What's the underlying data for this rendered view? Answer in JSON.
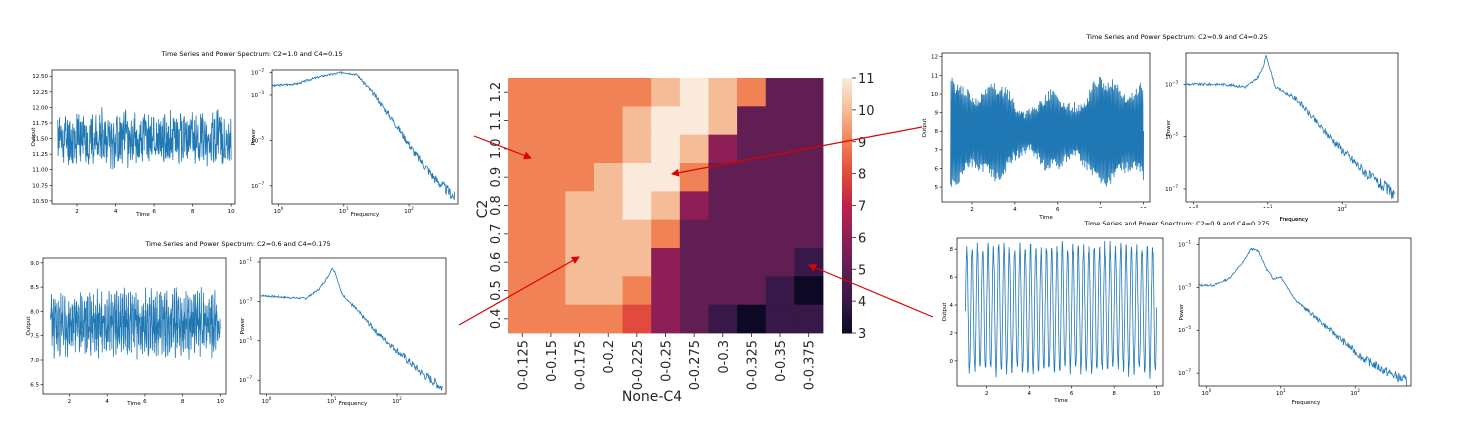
{
  "colors": {
    "line": "#1f77b4",
    "arrow": "#e00000"
  },
  "panels": [
    {
      "title": "Time Series and Power Spectrum: C2=1.0 and C4=0.15",
      "ts": {
        "xlabel": "Time",
        "ylabel": "Output",
        "xlim": [
          0.7,
          10.2
        ],
        "ylim": [
          10.45,
          12.6
        ],
        "xticks": [
          2,
          4,
          6,
          8,
          10
        ],
        "yticks": [
          10.5,
          10.75,
          11.0,
          11.25,
          11.5,
          11.75,
          12.0,
          12.25,
          12.5
        ],
        "ytick_labels": [
          "10.50",
          "10.75",
          "11.00",
          "11.25",
          "11.50",
          "11.75",
          "12.00",
          "12.25",
          "12.50"
        ],
        "mean": 11.5,
        "amp": 0.32,
        "freq": 0,
        "seed": 11
      },
      "ps": {
        "xlabel": "Frequency",
        "ylabel": "Power",
        "xlog": [
          -0.1,
          2.75
        ],
        "ylog": [
          -7.8,
          -1.9
        ],
        "xticks": [
          0,
          1,
          2
        ],
        "yticks": [
          -7,
          -5,
          -3,
          -2
        ],
        "curve": [
          [
            -0.1,
            -2.6
          ],
          [
            0.3,
            -2.5
          ],
          [
            0.5,
            -2.3
          ],
          [
            0.7,
            -2.15
          ],
          [
            0.9,
            -2.05
          ],
          [
            1.0,
            -2.0
          ],
          [
            1.2,
            -2.1
          ],
          [
            1.5,
            -3.1
          ],
          [
            1.8,
            -4.3
          ],
          [
            2.1,
            -5.6
          ],
          [
            2.4,
            -6.7
          ],
          [
            2.7,
            -7.5
          ]
        ],
        "seed": 3
      }
    },
    {
      "title": "Time Series and Power Spectrum: C2=0.6 and C4=0.175",
      "ts": {
        "xlabel": "Time",
        "ylabel": "Output",
        "xlim": [
          0.6,
          10.3
        ],
        "ylim": [
          6.3,
          9.1
        ],
        "xticks": [
          2,
          4,
          6,
          8,
          10
        ],
        "yticks": [
          6.5,
          7.0,
          7.5,
          8.0,
          8.5,
          9.0
        ],
        "ytick_labels": [
          "6.5",
          "7.0",
          "7.5",
          "8.0",
          "8.5",
          "9.0"
        ],
        "mean": 7.75,
        "amp": 0.42,
        "freq": 14,
        "seed": 23
      },
      "ps": {
        "xlabel": "Frequency",
        "ylabel": "Power",
        "xlog": [
          -0.1,
          2.75
        ],
        "ylog": [
          -7.7,
          -0.8
        ],
        "xticks": [
          0,
          1,
          2
        ],
        "yticks": [
          -7,
          -5,
          -3,
          -1
        ],
        "curve": [
          [
            -0.1,
            -2.7
          ],
          [
            0.3,
            -2.8
          ],
          [
            0.6,
            -2.85
          ],
          [
            0.8,
            -2.4
          ],
          [
            0.95,
            -1.7
          ],
          [
            1.0,
            -1.3
          ],
          [
            1.05,
            -1.5
          ],
          [
            1.15,
            -2.6
          ],
          [
            1.4,
            -3.5
          ],
          [
            1.7,
            -4.6
          ],
          [
            2.1,
            -5.8
          ],
          [
            2.4,
            -6.7
          ],
          [
            2.7,
            -7.4
          ]
        ],
        "seed": 7
      }
    },
    {
      "title": "Time Series and Power Spectrum: C2=0.9 and C4=0.25",
      "ts": {
        "xlabel": "Time",
        "ylabel": "Output",
        "xlim": [
          0.6,
          10.3
        ],
        "ylim": [
          4.2,
          12.2
        ],
        "xticks": [
          2,
          4,
          6,
          8,
          10
        ],
        "yticks": [
          5,
          6,
          7,
          8,
          9,
          10,
          11,
          12
        ],
        "ytick_labels": [
          "5",
          "6",
          "7",
          "8",
          "9",
          "10",
          "11",
          "12"
        ],
        "mean": 8.0,
        "amp": 3.0,
        "freq": 22,
        "seed": 31
      },
      "ps": {
        "xlabel": "Frequency",
        "ylabel": "Power",
        "xlog": [
          -0.1,
          2.75
        ],
        "ylog": [
          -7.5,
          -1.8
        ],
        "xticks": [
          0,
          1,
          2
        ],
        "yticks": [
          -7,
          -5,
          -3,
          -1
        ],
        "curve": [
          [
            -0.1,
            -3.0
          ],
          [
            0.4,
            -3.0
          ],
          [
            0.7,
            -3.1
          ],
          [
            0.85,
            -2.8
          ],
          [
            0.93,
            -2.4
          ],
          [
            0.98,
            -1.9
          ],
          [
            1.02,
            -2.3
          ],
          [
            1.1,
            -3.1
          ],
          [
            1.4,
            -3.6
          ],
          [
            1.7,
            -4.6
          ],
          [
            2.1,
            -5.8
          ],
          [
            2.4,
            -6.6
          ],
          [
            2.7,
            -7.2
          ]
        ],
        "seed": 9
      }
    },
    {
      "title": "Time Series and Power Spectrum: C2=0.9 and C4=0.275",
      "ts": {
        "xlabel": "Time",
        "ylabel": "Output",
        "xlim": [
          0.6,
          10.3
        ],
        "ylim": [
          -1.8,
          8.8
        ],
        "xticks": [
          2,
          4,
          6,
          8,
          10
        ],
        "yticks": [
          0,
          2,
          4,
          6,
          8
        ],
        "ytick_labels": [
          "0",
          "2",
          "4",
          "6",
          "8"
        ],
        "mean": 3.7,
        "amp": 4.6,
        "freq": 4,
        "seed": 41
      },
      "ps": {
        "xlabel": "Frequency",
        "ylabel": "Power",
        "xlog": [
          -0.1,
          2.75
        ],
        "ylog": [
          -7.6,
          -0.7
        ],
        "xticks": [
          0,
          1,
          2
        ],
        "yticks": [
          -7,
          -5,
          -3,
          -1
        ],
        "curve": [
          [
            -0.1,
            -2.9
          ],
          [
            0.1,
            -2.9
          ],
          [
            0.3,
            -2.6
          ],
          [
            0.5,
            -1.8
          ],
          [
            0.6,
            -1.2
          ],
          [
            0.7,
            -1.3
          ],
          [
            0.8,
            -2.1
          ],
          [
            0.9,
            -2.6
          ],
          [
            1.0,
            -2.5
          ],
          [
            1.2,
            -3.6
          ],
          [
            1.5,
            -4.5
          ],
          [
            1.8,
            -5.4
          ],
          [
            2.1,
            -6.3
          ],
          [
            2.4,
            -6.9
          ],
          [
            2.7,
            -7.4
          ]
        ],
        "seed": 13
      }
    }
  ],
  "chart_data": [
    {
      "type": "heatmap",
      "xlabel": "None-C4",
      "ylabel": "C2",
      "x": [
        "0-0.125",
        "0-0.15",
        "0-0.175",
        "0-0.2",
        "0-0.225",
        "0-0.25",
        "0-0.275",
        "0-0.3",
        "0-0.325",
        "0-0.35",
        "0-0.375"
      ],
      "y": [
        "1.2",
        "1.1",
        "1.0",
        "0.9",
        "0.8",
        "0.7",
        "0.6",
        "0.5",
        "0.4"
      ],
      "values": [
        [
          9,
          9,
          9,
          9,
          9,
          10,
          11,
          10,
          9,
          5,
          5
        ],
        [
          9,
          9,
          9,
          9,
          10,
          11,
          11,
          10,
          5,
          5,
          5
        ],
        [
          9,
          9,
          9,
          9,
          10,
          11,
          10,
          6,
          5,
          5,
          5
        ],
        [
          9,
          9,
          9,
          10,
          11,
          11,
          9,
          5,
          5,
          5,
          5
        ],
        [
          9,
          9,
          10,
          10,
          11,
          10,
          6,
          5,
          5,
          5,
          5
        ],
        [
          9,
          9,
          10,
          10,
          10,
          9,
          5,
          5,
          5,
          5,
          5
        ],
        [
          9,
          9,
          10,
          10,
          10,
          6,
          5,
          5,
          5,
          5,
          4
        ],
        [
          9,
          9,
          10,
          10,
          9,
          6,
          5,
          5,
          5,
          4,
          3
        ],
        [
          9,
          9,
          9,
          9,
          8,
          6,
          5,
          4,
          3,
          4,
          4
        ]
      ],
      "colorbar": {
        "min": 3,
        "max": 11,
        "ticks": [
          "3",
          "4",
          "5",
          "6",
          "7",
          "8",
          "9",
          "10",
          "11"
        ]
      }
    }
  ]
}
